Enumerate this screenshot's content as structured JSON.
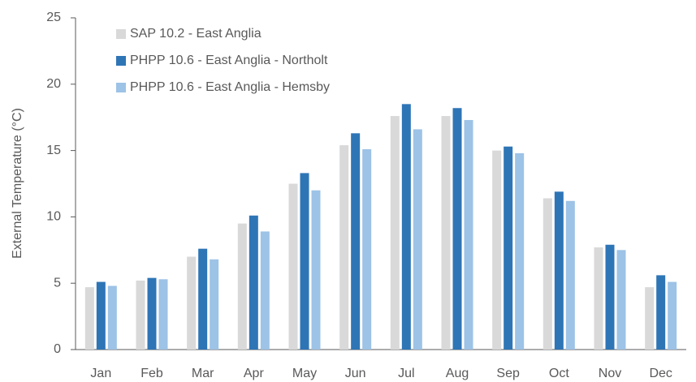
{
  "chart_data": {
    "type": "bar",
    "ylabel": "External Temperature (°C)",
    "categories": [
      "Jan",
      "Feb",
      "Mar",
      "Apr",
      "May",
      "Jun",
      "Jul",
      "Aug",
      "Sep",
      "Oct",
      "Nov",
      "Dec"
    ],
    "series": [
      {
        "name": "SAP 10.2 - East Anglia",
        "color": "#d9d9d9",
        "values": [
          4.7,
          5.2,
          7.0,
          9.5,
          12.5,
          15.4,
          17.6,
          17.6,
          15.0,
          11.4,
          7.7,
          4.7
        ]
      },
      {
        "name": "PHPP 10.6 - East Anglia - Northolt",
        "color": "#2e75b6",
        "values": [
          5.1,
          5.4,
          7.6,
          10.1,
          13.3,
          16.3,
          18.5,
          18.2,
          15.3,
          11.9,
          7.9,
          5.6
        ]
      },
      {
        "name": "PHPP 10.6 - East Anglia - Hemsby",
        "color": "#9dc3e6",
        "values": [
          4.8,
          5.3,
          6.8,
          8.9,
          12.0,
          15.1,
          16.6,
          17.3,
          14.8,
          11.2,
          7.5,
          5.1
        ]
      }
    ],
    "ylim": [
      0,
      25
    ],
    "yticks": [
      0,
      5,
      10,
      15,
      20,
      25
    ],
    "legend": "top-left"
  }
}
